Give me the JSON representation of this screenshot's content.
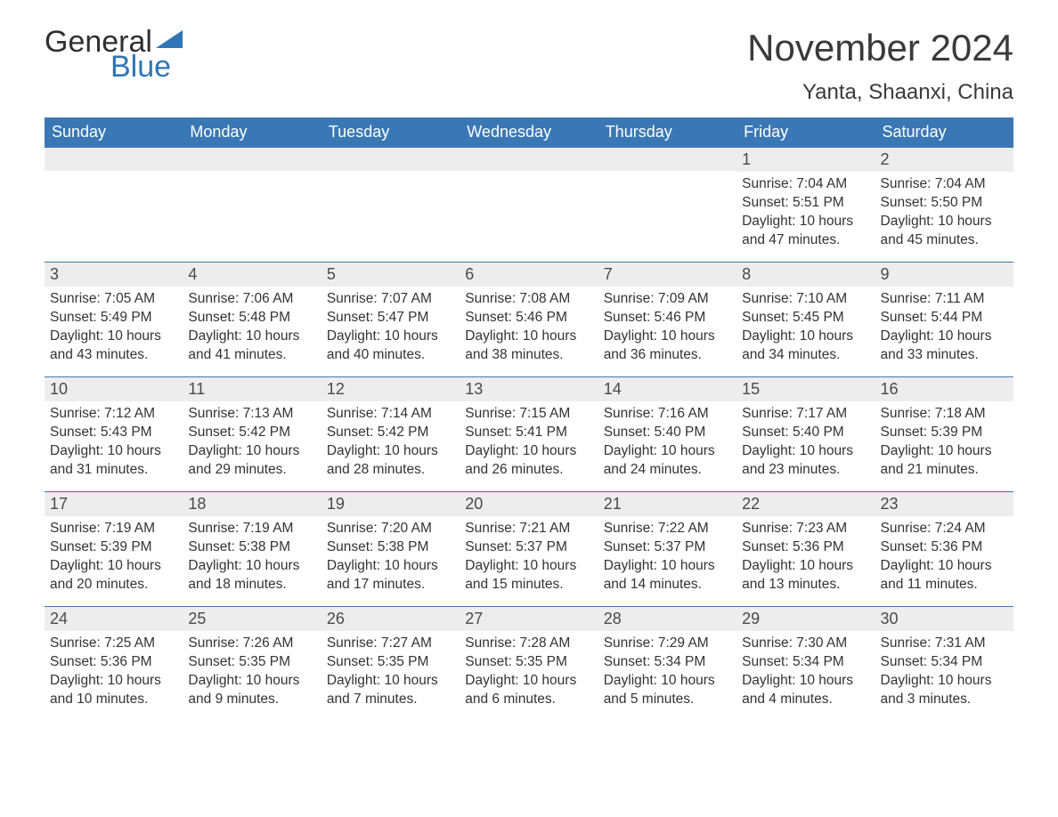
{
  "logo": {
    "text1": "General",
    "text2": "Blue",
    "tri_color": "#2f75b5"
  },
  "title": "November 2024",
  "location": "Yanta, Shaanxi, China",
  "colors": {
    "header_bg": "#3a78b5",
    "header_text": "#ffffff",
    "daynum_bg": "#ededed",
    "week_border": "#3a78b5",
    "body_text": "#333333",
    "page_bg": "#ffffff"
  },
  "typography": {
    "title_fontsize": 42,
    "location_fontsize": 24,
    "dow_fontsize": 18,
    "daynum_fontsize": 18,
    "body_fontsize": 15.5
  },
  "days_of_week": [
    "Sunday",
    "Monday",
    "Tuesday",
    "Wednesday",
    "Thursday",
    "Friday",
    "Saturday"
  ],
  "weeks": [
    [
      {
        "blank": true
      },
      {
        "blank": true
      },
      {
        "blank": true
      },
      {
        "blank": true
      },
      {
        "blank": true
      },
      {
        "n": 1,
        "sunrise": "7:04 AM",
        "sunset": "5:51 PM",
        "daylight": "10 hours and 47 minutes."
      },
      {
        "n": 2,
        "sunrise": "7:04 AM",
        "sunset": "5:50 PM",
        "daylight": "10 hours and 45 minutes."
      }
    ],
    [
      {
        "n": 3,
        "sunrise": "7:05 AM",
        "sunset": "5:49 PM",
        "daylight": "10 hours and 43 minutes."
      },
      {
        "n": 4,
        "sunrise": "7:06 AM",
        "sunset": "5:48 PM",
        "daylight": "10 hours and 41 minutes."
      },
      {
        "n": 5,
        "sunrise": "7:07 AM",
        "sunset": "5:47 PM",
        "daylight": "10 hours and 40 minutes."
      },
      {
        "n": 6,
        "sunrise": "7:08 AM",
        "sunset": "5:46 PM",
        "daylight": "10 hours and 38 minutes."
      },
      {
        "n": 7,
        "sunrise": "7:09 AM",
        "sunset": "5:46 PM",
        "daylight": "10 hours and 36 minutes."
      },
      {
        "n": 8,
        "sunrise": "7:10 AM",
        "sunset": "5:45 PM",
        "daylight": "10 hours and 34 minutes."
      },
      {
        "n": 9,
        "sunrise": "7:11 AM",
        "sunset": "5:44 PM",
        "daylight": "10 hours and 33 minutes."
      }
    ],
    [
      {
        "n": 10,
        "sunrise": "7:12 AM",
        "sunset": "5:43 PM",
        "daylight": "10 hours and 31 minutes."
      },
      {
        "n": 11,
        "sunrise": "7:13 AM",
        "sunset": "5:42 PM",
        "daylight": "10 hours and 29 minutes."
      },
      {
        "n": 12,
        "sunrise": "7:14 AM",
        "sunset": "5:42 PM",
        "daylight": "10 hours and 28 minutes."
      },
      {
        "n": 13,
        "sunrise": "7:15 AM",
        "sunset": "5:41 PM",
        "daylight": "10 hours and 26 minutes."
      },
      {
        "n": 14,
        "sunrise": "7:16 AM",
        "sunset": "5:40 PM",
        "daylight": "10 hours and 24 minutes."
      },
      {
        "n": 15,
        "sunrise": "7:17 AM",
        "sunset": "5:40 PM",
        "daylight": "10 hours and 23 minutes."
      },
      {
        "n": 16,
        "sunrise": "7:18 AM",
        "sunset": "5:39 PM",
        "daylight": "10 hours and 21 minutes."
      }
    ],
    [
      {
        "n": 17,
        "sunrise": "7:19 AM",
        "sunset": "5:39 PM",
        "daylight": "10 hours and 20 minutes."
      },
      {
        "n": 18,
        "sunrise": "7:19 AM",
        "sunset": "5:38 PM",
        "daylight": "10 hours and 18 minutes."
      },
      {
        "n": 19,
        "sunrise": "7:20 AM",
        "sunset": "5:38 PM",
        "daylight": "10 hours and 17 minutes."
      },
      {
        "n": 20,
        "sunrise": "7:21 AM",
        "sunset": "5:37 PM",
        "daylight": "10 hours and 15 minutes."
      },
      {
        "n": 21,
        "sunrise": "7:22 AM",
        "sunset": "5:37 PM",
        "daylight": "10 hours and 14 minutes."
      },
      {
        "n": 22,
        "sunrise": "7:23 AM",
        "sunset": "5:36 PM",
        "daylight": "10 hours and 13 minutes."
      },
      {
        "n": 23,
        "sunrise": "7:24 AM",
        "sunset": "5:36 PM",
        "daylight": "10 hours and 11 minutes."
      }
    ],
    [
      {
        "n": 24,
        "sunrise": "7:25 AM",
        "sunset": "5:36 PM",
        "daylight": "10 hours and 10 minutes."
      },
      {
        "n": 25,
        "sunrise": "7:26 AM",
        "sunset": "5:35 PM",
        "daylight": "10 hours and 9 minutes."
      },
      {
        "n": 26,
        "sunrise": "7:27 AM",
        "sunset": "5:35 PM",
        "daylight": "10 hours and 7 minutes."
      },
      {
        "n": 27,
        "sunrise": "7:28 AM",
        "sunset": "5:35 PM",
        "daylight": "10 hours and 6 minutes."
      },
      {
        "n": 28,
        "sunrise": "7:29 AM",
        "sunset": "5:34 PM",
        "daylight": "10 hours and 5 minutes."
      },
      {
        "n": 29,
        "sunrise": "7:30 AM",
        "sunset": "5:34 PM",
        "daylight": "10 hours and 4 minutes."
      },
      {
        "n": 30,
        "sunrise": "7:31 AM",
        "sunset": "5:34 PM",
        "daylight": "10 hours and 3 minutes."
      }
    ]
  ],
  "labels": {
    "sunrise": "Sunrise:",
    "sunset": "Sunset:",
    "daylight": "Daylight:"
  }
}
